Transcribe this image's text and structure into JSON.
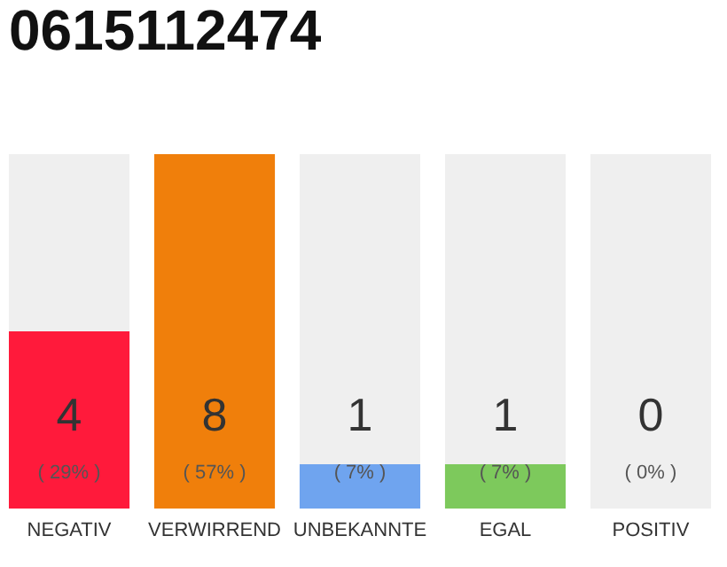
{
  "chart_data": {
    "type": "bar",
    "title": "0615112474",
    "categories": [
      "NEGATIV",
      "VERWIRREND",
      "UNBEKANNTE",
      "EGAL",
      "POSITIV"
    ],
    "values": [
      4,
      8,
      1,
      1,
      0
    ],
    "colors": [
      "#ff1a3b",
      "#f07f0b",
      "#6fa4ef",
      "#7dc95c",
      "#d9d9d9"
    ],
    "data_labels": true,
    "annotations": [
      "( 29% )",
      "( 57% )",
      "( 7% )",
      "( 7% )",
      "( 0% )"
    ],
    "grid": false,
    "legend": false
  }
}
